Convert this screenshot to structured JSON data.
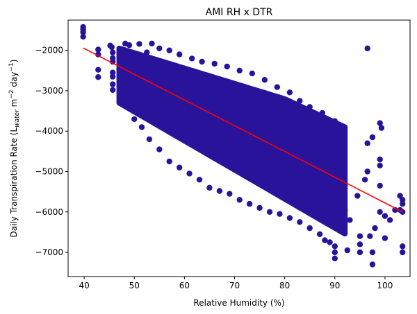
{
  "chart_data": {
    "type": "scatter",
    "title": "AMI RH x DTR",
    "xlabel": "Relative Humidity (%)",
    "ylabel_main": "Daily Transpiration Rate (L",
    "ylabel_sub": "water",
    "ylabel_mid": " m",
    "ylabel_sup1": "−2",
    "ylabel_unit": " day",
    "ylabel_sup2": "−1",
    "ylabel_close": ")",
    "xlim": [
      36.8,
      105.0
    ],
    "ylim": [
      -7600,
      -1250
    ],
    "xticks": [
      40,
      50,
      60,
      70,
      80,
      90,
      100
    ],
    "yticks": [
      -7000,
      -6000,
      -5000,
      -4000,
      -3000,
      -2000
    ],
    "xtick_labels": [
      "40",
      "50",
      "60",
      "70",
      "80",
      "90",
      "100"
    ],
    "ytick_labels": [
      "−7000",
      "−6000",
      "−5000",
      "−4000",
      "−3000",
      "−2000"
    ],
    "grid": false,
    "scatter_color": "#2a139b",
    "line_color": "#ff0000",
    "series": [
      {
        "points": [
          [
            39.8,
            -1420
          ],
          [
            39.8,
            -1480
          ],
          [
            39.8,
            -1550
          ],
          [
            39.8,
            -1660
          ],
          [
            42.8,
            -1980
          ],
          [
            42.8,
            -2100
          ],
          [
            42.8,
            -2480
          ],
          [
            42.8,
            -2660
          ],
          [
            45.2,
            -1880
          ],
          [
            45.5,
            -1920
          ],
          [
            45.7,
            -2050
          ],
          [
            45.7,
            -2190
          ],
          [
            45.7,
            -2280
          ],
          [
            45.7,
            -2550
          ],
          [
            45.7,
            -2650
          ],
          [
            45.7,
            -2840
          ],
          [
            45.7,
            -2980
          ],
          [
            47.0,
            -2480
          ],
          [
            47.3,
            -2620
          ],
          [
            47.8,
            -2200
          ],
          [
            48.2,
            -1830
          ],
          [
            49.0,
            -1870
          ],
          [
            49.3,
            -2130
          ],
          [
            49.6,
            -2400
          ],
          [
            50.0,
            -2800
          ],
          [
            51.0,
            -1840
          ],
          [
            52.5,
            -2050
          ],
          [
            53.5,
            -1830
          ],
          [
            55.0,
            -1950
          ],
          [
            57.0,
            -2000
          ],
          [
            59.0,
            -2100
          ],
          [
            61.5,
            -2200
          ],
          [
            63.5,
            -2280
          ],
          [
            66.0,
            -2330
          ],
          [
            68.5,
            -2400
          ],
          [
            71.0,
            -2500
          ],
          [
            73.5,
            -2570
          ],
          [
            76.0,
            -2730
          ],
          [
            78.5,
            -2910
          ],
          [
            81.0,
            -3040
          ],
          [
            83.0,
            -3250
          ],
          [
            85.0,
            -3400
          ],
          [
            87.5,
            -3550
          ],
          [
            90.0,
            -3750
          ],
          [
            91.0,
            -4200
          ],
          [
            49.0,
            -3400
          ],
          [
            50.0,
            -3700
          ],
          [
            51.5,
            -3900
          ],
          [
            53.0,
            -4200
          ],
          [
            55.0,
            -4450
          ],
          [
            57.0,
            -4750
          ],
          [
            59.0,
            -4900
          ],
          [
            61.0,
            -5050
          ],
          [
            63.0,
            -5200
          ],
          [
            65.0,
            -5400
          ],
          [
            67.0,
            -5480
          ],
          [
            69.0,
            -5550
          ],
          [
            71.0,
            -5700
          ],
          [
            73.0,
            -5800
          ],
          [
            75.0,
            -5900
          ],
          [
            77.0,
            -6000
          ],
          [
            79.0,
            -6050
          ],
          [
            81.0,
            -6150
          ],
          [
            83.0,
            -6250
          ],
          [
            85.0,
            -6400
          ],
          [
            87.0,
            -6550
          ],
          [
            88.0,
            -6700
          ],
          [
            89.0,
            -6750
          ],
          [
            96.5,
            -1950
          ],
          [
            97.5,
            -4150
          ],
          [
            99.0,
            -3800
          ],
          [
            99.3,
            -3920
          ],
          [
            99.0,
            -4700
          ],
          [
            99.0,
            -4850
          ],
          [
            99.0,
            -5350
          ],
          [
            99.0,
            -6000
          ],
          [
            100.0,
            -6100
          ],
          [
            100.0,
            -6650
          ],
          [
            97.5,
            -7000
          ],
          [
            97.5,
            -7300
          ],
          [
            95.0,
            -6600
          ],
          [
            95.0,
            -6800
          ],
          [
            95.0,
            -7000
          ],
          [
            92.5,
            -6950
          ],
          [
            90.0,
            -7000
          ],
          [
            90.0,
            -7150
          ],
          [
            90.0,
            -6850
          ],
          [
            93.0,
            -6200
          ],
          [
            92.0,
            -5950
          ],
          [
            94.5,
            -5600
          ],
          [
            96.0,
            -5200
          ],
          [
            96.5,
            -5000
          ],
          [
            96.5,
            -4300
          ],
          [
            103.0,
            -5600
          ],
          [
            103.5,
            -5700
          ],
          [
            103.5,
            -5800
          ],
          [
            103.0,
            -5950
          ],
          [
            103.5,
            -6000
          ],
          [
            103.5,
            -6850
          ],
          [
            103.5,
            -7000
          ],
          [
            102.0,
            -5950
          ],
          [
            101.0,
            -6200
          ],
          [
            98.0,
            -6400
          ],
          [
            97.0,
            -6600
          ]
        ]
      }
    ],
    "fit_line": {
      "x": [
        39.8,
        103.5
      ],
      "y": [
        -1940,
        -6000
      ]
    }
  }
}
